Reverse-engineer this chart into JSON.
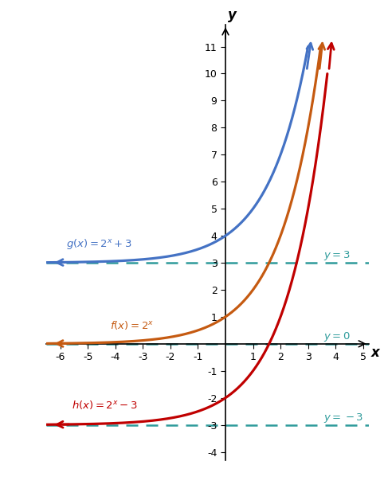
{
  "xlabel": "x",
  "ylabel": "y",
  "xlim": [
    -6.5,
    5.2
  ],
  "ylim": [
    -4.3,
    11.8
  ],
  "xticks": [
    -6,
    -5,
    -4,
    -3,
    -2,
    -1,
    1,
    2,
    3,
    4,
    5
  ],
  "yticks": [
    -4,
    -3,
    -2,
    -1,
    1,
    2,
    3,
    4,
    5,
    6,
    7,
    8,
    9,
    10,
    11
  ],
  "color_g": "#4472C4",
  "color_f": "#C55A11",
  "color_h": "#C00000",
  "color_asymptote": "#2E9B9B",
  "background_color": "#ffffff",
  "figsize": [
    4.87,
    6.28
  ],
  "dpi": 100
}
